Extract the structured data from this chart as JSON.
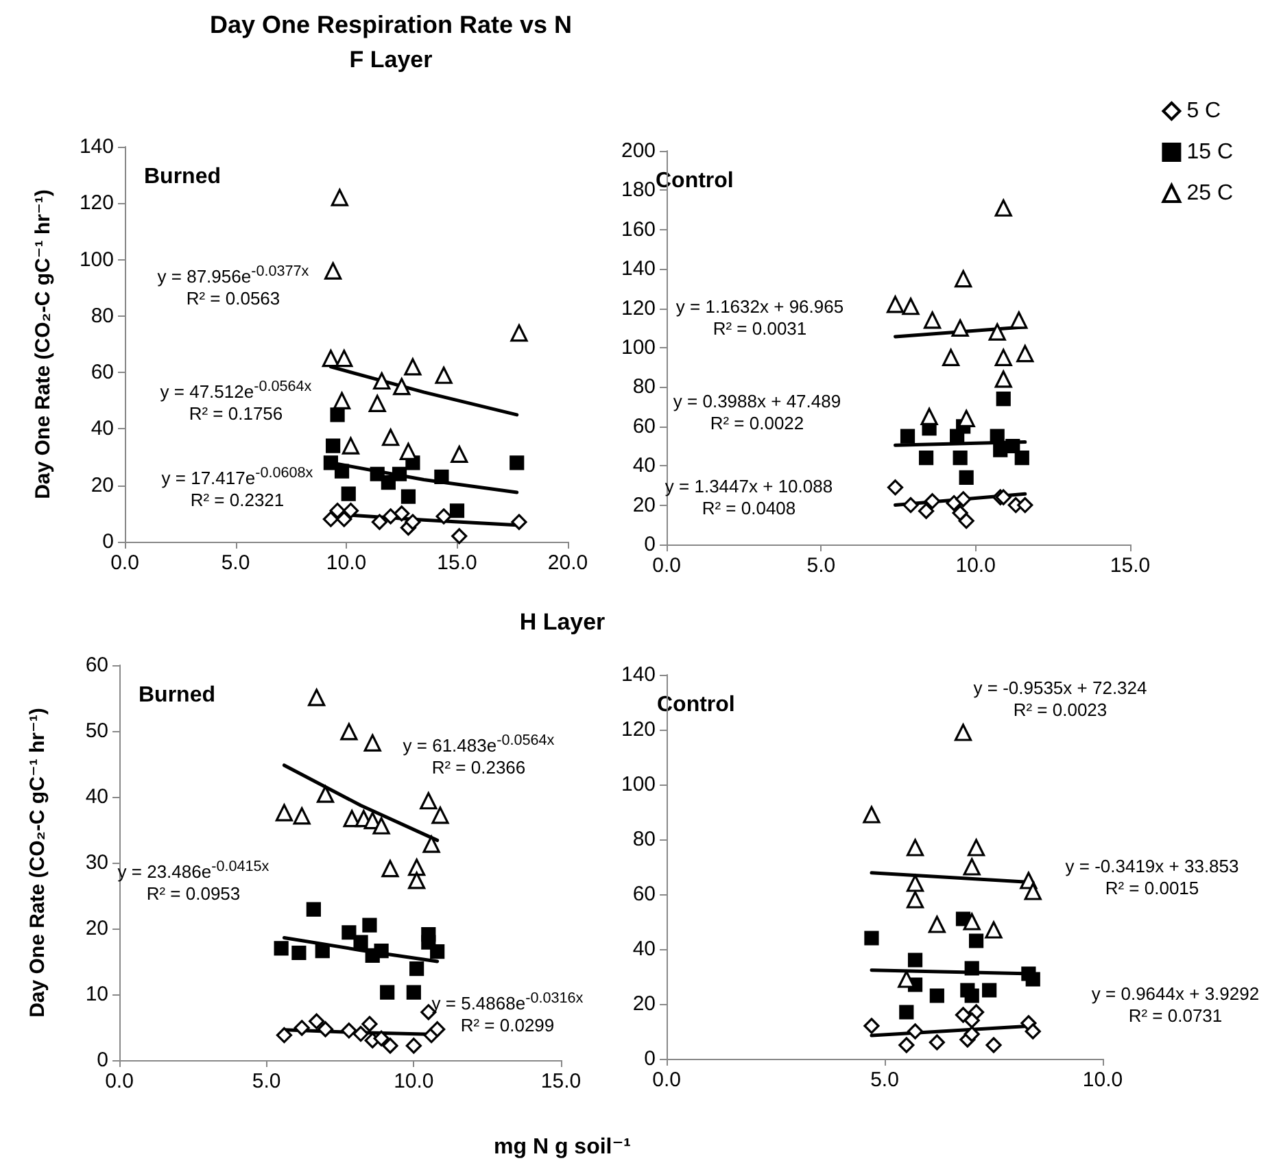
{
  "chart_data": [
    {
      "type": "scatter",
      "title": "Day One Respiration Rate vs N",
      "subtitle": "F Layer",
      "ylabel": "Day One Rate (CO₂-C gC⁻¹ hr⁻¹)",
      "xlim": [
        0,
        20
      ],
      "xticks": [
        {
          "value": 0,
          "label": "0.0"
        },
        {
          "value": 5,
          "label": "5.0"
        },
        {
          "value": 10,
          "label": "10.0"
        },
        {
          "value": 15,
          "label": "15.0"
        },
        {
          "value": 20,
          "label": "20.0"
        }
      ],
      "ylim": [
        0,
        140
      ],
      "yticks": [
        0,
        20,
        40,
        60,
        80,
        100,
        120,
        140
      ],
      "annotations": [
        "Burned",
        "y = 87.956e$^{-0.0377x}$\nR² = 0.0563",
        "y = 47.512e$^{-0.0564x}$\nR² = 0.1756",
        "y = 17.417e$^{-0.0608x}$\nR² = 0.2321"
      ],
      "series": [
        {
          "color": "#000000",
          "marker": "diamond",
          "x": [
            9.3,
            9.6,
            9.9,
            10.2,
            11.5,
            12.0,
            12.5,
            12.8,
            13.0,
            14.4,
            15.1,
            17.8
          ],
          "values": [
            8,
            11,
            8,
            11,
            7,
            9,
            10,
            5,
            7,
            9,
            2,
            7
          ]
        },
        {
          "color": "#000000",
          "marker": "square",
          "x": [
            9.6,
            9.4,
            9.3,
            9.8,
            10.1,
            11.4,
            11.9,
            12.4,
            13.0,
            12.8,
            14.3,
            15.0,
            17.7
          ],
          "values": [
            45,
            34,
            28,
            25,
            17,
            24,
            21,
            24,
            28,
            16,
            23,
            11,
            28
          ]
        },
        {
          "color": "#000000",
          "marker": "triangle",
          "x": [
            9.7,
            9.4,
            9.3,
            9.9,
            9.8,
            10.2,
            11.6,
            11.4,
            12.5,
            13.0,
            12.0,
            12.8,
            14.4,
            15.1,
            17.8
          ],
          "values": [
            122,
            96,
            65,
            65,
            50,
            34,
            57,
            49,
            55,
            62,
            37,
            32,
            59,
            31,
            74
          ]
        },
        {
          "type": "line",
          "color": "#000000",
          "marker": "none",
          "x": [
            9.3,
            13.5,
            17.7
          ],
          "values": [
            9.9,
            7.7,
            5.9
          ]
        },
        {
          "type": "line",
          "color": "#000000",
          "marker": "none",
          "x": [
            9.3,
            13.5,
            17.7
          ],
          "values": [
            28,
            22,
            17.5
          ]
        },
        {
          "type": "line",
          "color": "#000000",
          "marker": "none",
          "x": [
            9.3,
            13.5,
            17.7
          ],
          "values": [
            62,
            53,
            45
          ]
        }
      ]
    },
    {
      "type": "scatter",
      "legend": "top right",
      "xlim": [
        0,
        15
      ],
      "xticks": [
        {
          "value": 0,
          "label": "0.0"
        },
        {
          "value": 5,
          "label": "5.0"
        },
        {
          "value": 10,
          "label": "10.0"
        },
        {
          "value": 15,
          "label": "15.0"
        }
      ],
      "ylim": [
        0,
        200
      ],
      "yticks": [
        0,
        20,
        40,
        60,
        80,
        100,
        120,
        140,
        160,
        180,
        200
      ],
      "annotations": [
        "Control",
        "y = 1.1632x + 96.965\nR² = 0.0031",
        "y = 0.3988x + 47.489\nR² = 0.0022",
        "y = 1.3447x + 10.088\nR² = 0.0408"
      ],
      "series": [
        {
          "name": "5 C",
          "color": "#000000",
          "marker": "diamond",
          "x": [
            7.4,
            7.9,
            8.4,
            8.6,
            9.3,
            9.6,
            9.5,
            9.7,
            10.8,
            10.9,
            11.3,
            11.6
          ],
          "values": [
            29,
            20,
            17,
            22,
            21,
            23,
            16,
            12,
            24,
            24,
            20,
            20
          ]
        },
        {
          "name": "15 C",
          "color": "#000000",
          "marker": "square",
          "x": [
            10.9,
            7.8,
            8.5,
            9.6,
            9.4,
            10.7,
            10.8,
            11.2,
            8.4,
            9.5,
            11.5,
            9.7
          ],
          "values": [
            74,
            55,
            59,
            60,
            55,
            55,
            48,
            50,
            44,
            44,
            44,
            34
          ]
        },
        {
          "name": "25 C",
          "color": "#000000",
          "marker": "triangle",
          "x": [
            10.9,
            9.6,
            7.4,
            7.9,
            8.6,
            9.5,
            11.4,
            10.7,
            9.2,
            10.9,
            11.6,
            10.9,
            8.5,
            9.7
          ],
          "values": [
            171,
            135,
            122,
            121,
            114,
            110,
            114,
            108,
            95,
            95,
            97,
            84,
            65,
            64
          ]
        },
        {
          "type": "line",
          "color": "#000000",
          "marker": "none",
          "x": [
            7.4,
            11.6
          ],
          "values": [
            20.0,
            25.7
          ]
        },
        {
          "type": "line",
          "color": "#000000",
          "marker": "none",
          "x": [
            7.4,
            11.6
          ],
          "values": [
            50.4,
            52.1
          ]
        },
        {
          "type": "line",
          "color": "#000000",
          "marker": "none",
          "x": [
            7.4,
            11.6
          ],
          "values": [
            105.6,
            110.5
          ]
        }
      ]
    },
    {
      "type": "scatter",
      "subtitle": "H Layer",
      "ylabel": "Day One Rate (CO₂-C gC⁻¹ hr⁻¹)",
      "xlim": [
        0,
        15
      ],
      "xticks": [
        {
          "value": 0,
          "label": "0.0"
        },
        {
          "value": 5,
          "label": "5.0"
        },
        {
          "value": 10,
          "label": "10.0"
        },
        {
          "value": 15,
          "label": "15.0"
        }
      ],
      "ylim": [
        0,
        60
      ],
      "yticks": [
        0,
        10,
        20,
        30,
        40,
        50,
        60
      ],
      "annotations": [
        "Burned",
        "y = 61.483e$^{-0.0564x}$\nR² = 0.2366",
        "y = 23.486e$^{-0.0415x}$\nR² = 0.0953",
        "y = 5.4868e$^{-0.0316x}$\nR² = 0.0299"
      ],
      "series": [
        {
          "color": "#000000",
          "marker": "diamond",
          "x": [
            5.6,
            6.2,
            6.7,
            7.0,
            7.8,
            8.2,
            8.5,
            8.6,
            8.9,
            9.2,
            10.0,
            10.5,
            10.6,
            10.8
          ],
          "values": [
            3.8,
            4.9,
            5.9,
            4.7,
            4.5,
            4.0,
            5.5,
            3.0,
            3.3,
            2.2,
            2.2,
            7.3,
            3.8,
            4.7
          ]
        },
        {
          "color": "#000000",
          "marker": "square",
          "x": [
            5.5,
            6.1,
            6.6,
            6.9,
            7.8,
            8.2,
            8.5,
            8.6,
            8.9,
            9.1,
            10.0,
            10.1,
            10.5,
            10.5,
            10.8
          ],
          "values": [
            17.0,
            16.3,
            22.9,
            16.6,
            19.4,
            17.9,
            20.5,
            15.9,
            16.6,
            10.3,
            10.3,
            13.9,
            19.1,
            17.9,
            16.5
          ]
        },
        {
          "color": "#000000",
          "marker": "triangle",
          "x": [
            6.7,
            7.8,
            8.6,
            5.6,
            6.2,
            7.0,
            7.9,
            8.3,
            8.6,
            8.9,
            10.5,
            10.9,
            10.6,
            9.2,
            10.1,
            10.1
          ],
          "values": [
            55.1,
            49.9,
            48.2,
            37.6,
            37.1,
            40.4,
            36.7,
            36.7,
            36.4,
            35.6,
            39.4,
            37.2,
            32.8,
            29.1,
            29.3,
            27.3
          ]
        },
        {
          "type": "line",
          "color": "#000000",
          "marker": "none",
          "x": [
            5.6,
            8.2,
            10.8
          ],
          "values": [
            4.6,
            4.2,
            3.9
          ]
        },
        {
          "type": "line",
          "color": "#000000",
          "marker": "none",
          "x": [
            5.6,
            8.2,
            10.8
          ],
          "values": [
            18.6,
            16.7,
            15.0
          ]
        },
        {
          "type": "line",
          "color": "#000000",
          "marker": "none",
          "x": [
            5.6,
            8.2,
            10.8
          ],
          "values": [
            44.8,
            38.7,
            33.4
          ]
        }
      ]
    },
    {
      "type": "scatter",
      "xlabel": "mg N g soil⁻¹",
      "xlim": [
        0,
        10
      ],
      "xticks": [
        {
          "value": 0,
          "label": "0.0"
        },
        {
          "value": 5,
          "label": "5.0"
        },
        {
          "value": 10,
          "label": "10.0"
        }
      ],
      "ylim": [
        0,
        140
      ],
      "yticks": [
        0,
        20,
        40,
        60,
        80,
        100,
        120,
        140
      ],
      "annotations": [
        "Control",
        "y = -0.9535x + 72.324\nR² = 0.0023",
        "y = -0.3419x + 33.853\nR² = 0.0015",
        "y = 0.9644x + 3.9292\nR² = 0.0731"
      ],
      "series": [
        {
          "color": "#000000",
          "marker": "diamond",
          "x": [
            4.7,
            5.7,
            5.5,
            6.2,
            6.8,
            7.1,
            7.0,
            6.9,
            7.5,
            8.3,
            8.4,
            7.0
          ],
          "values": [
            12,
            10,
            5,
            6,
            16,
            17,
            14,
            7,
            5,
            13,
            10,
            9
          ]
        },
        {
          "color": "#000000",
          "marker": "square",
          "x": [
            6.8,
            4.7,
            7.1,
            5.7,
            7.0,
            8.3,
            8.4,
            5.7,
            6.2,
            6.9,
            7.0,
            7.4,
            5.5
          ],
          "values": [
            51,
            44,
            43,
            36,
            33,
            31,
            29,
            27,
            23,
            25,
            23,
            25,
            17
          ]
        },
        {
          "color": "#000000",
          "marker": "triangle",
          "x": [
            6.8,
            4.7,
            5.7,
            7.1,
            7.0,
            5.7,
            5.7,
            8.3,
            8.4,
            6.2,
            7.0,
            7.5,
            5.5
          ],
          "values": [
            119,
            89,
            77,
            77,
            70,
            64,
            58,
            65,
            61,
            49,
            50,
            47,
            29
          ]
        },
        {
          "type": "line",
          "color": "#000000",
          "marker": "none",
          "x": [
            4.7,
            8.4
          ],
          "values": [
            8.5,
            12.0
          ]
        },
        {
          "type": "line",
          "color": "#000000",
          "marker": "none",
          "x": [
            4.7,
            8.4
          ],
          "values": [
            32.3,
            31.0
          ]
        },
        {
          "type": "line",
          "color": "#000000",
          "marker": "none",
          "x": [
            4.7,
            8.4
          ],
          "values": [
            67.8,
            64.3
          ]
        }
      ]
    }
  ]
}
